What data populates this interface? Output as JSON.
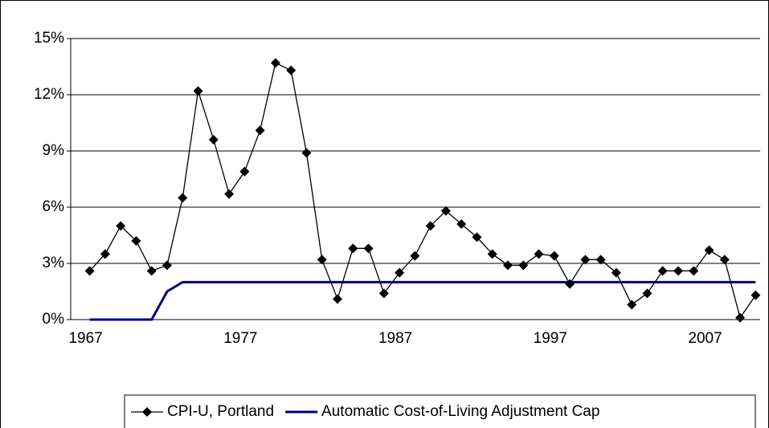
{
  "chart_data": {
    "type": "line",
    "categories": [
      "1967",
      null,
      null,
      null,
      null,
      null,
      null,
      null,
      null,
      null,
      "1977",
      null,
      null,
      null,
      null,
      null,
      null,
      null,
      null,
      null,
      "1987",
      null,
      null,
      null,
      null,
      null,
      null,
      null,
      null,
      null,
      "1997",
      null,
      null,
      null,
      null,
      null,
      null,
      null,
      null,
      null,
      "2007",
      null,
      null,
      null
    ],
    "series": [
      {
        "name": "CPI-U, Portland",
        "color": "#000000",
        "marker": "diamond",
        "values": [
          2.6,
          3.5,
          5.0,
          4.2,
          2.6,
          2.9,
          6.5,
          12.2,
          9.6,
          6.7,
          7.9,
          10.1,
          13.7,
          13.3,
          8.9,
          3.2,
          1.1,
          3.8,
          3.8,
          1.4,
          2.5,
          3.4,
          5.0,
          5.8,
          5.1,
          4.4,
          3.5,
          2.9,
          2.9,
          3.5,
          3.4,
          1.9,
          3.2,
          3.2,
          2.5,
          0.8,
          1.4,
          2.6,
          2.6,
          2.6,
          3.7,
          3.2,
          0.1,
          1.3
        ]
      },
      {
        "name": "Automatic Cost-of-Living Adjustment Cap",
        "color": "#000080",
        "values": [
          0,
          0,
          0,
          0,
          0,
          1.5,
          2,
          2,
          2,
          2,
          2,
          2,
          2,
          2,
          2,
          2,
          2,
          2,
          2,
          2,
          2,
          2,
          2,
          2,
          2,
          2,
          2,
          2,
          2,
          2,
          2,
          2,
          2,
          2,
          2,
          2,
          2,
          2,
          2,
          2,
          2,
          2,
          2,
          2
        ]
      }
    ],
    "ylim": [
      0,
      15
    ],
    "yticks": [
      {
        "value": 0,
        "label": "0%"
      },
      {
        "value": 3,
        "label": "3%"
      },
      {
        "value": 6,
        "label": "6%"
      },
      {
        "value": 9,
        "label": "9%"
      },
      {
        "value": 12,
        "label": "12%"
      },
      {
        "value": 15,
        "label": "15%"
      }
    ],
    "grid": true,
    "legend": "bottom"
  }
}
